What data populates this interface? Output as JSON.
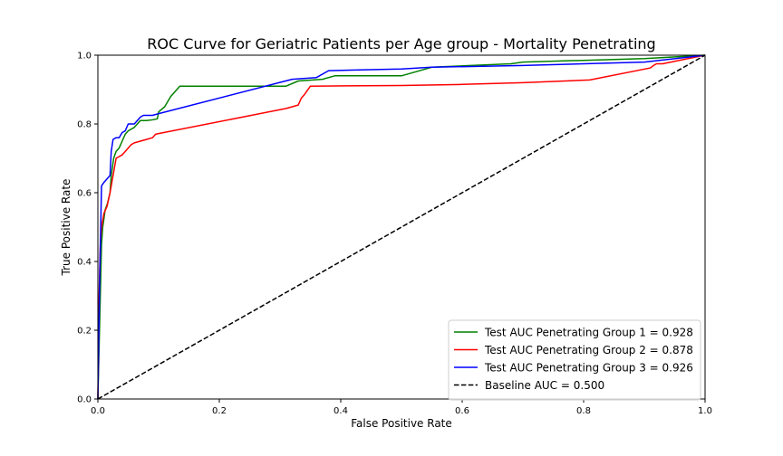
{
  "chart_data": {
    "type": "line",
    "title": "ROC Curve for Geriatric Patients per Age group - Mortality Penetrating",
    "xlabel": "False Positive Rate",
    "ylabel": "True Positive Rate",
    "xlim": [
      0,
      1
    ],
    "ylim": [
      0,
      1
    ],
    "xticks": [
      "0.0",
      "0.2",
      "0.4",
      "0.6",
      "0.8",
      "1.0"
    ],
    "yticks": [
      "0.0",
      "0.2",
      "0.4",
      "0.6",
      "0.8",
      "1.0"
    ],
    "grid": false,
    "legend_position": "lower-right",
    "series": [
      {
        "name": "Test AUC Penetrating Group 1 = 0.928",
        "color": "#008000",
        "dash": "solid",
        "x": [
          0,
          0.004,
          0.006,
          0.008,
          0.012,
          0.016,
          0.02,
          0.022,
          0.026,
          0.03,
          0.035,
          0.04,
          0.045,
          0.05,
          0.06,
          0.065,
          0.07,
          0.08,
          0.09,
          0.098,
          0.1,
          0.11,
          0.12,
          0.135,
          0.31,
          0.33,
          0.37,
          0.39,
          0.5,
          0.55,
          0.68,
          0.7,
          0.8,
          0.9,
          1.0
        ],
        "y": [
          0,
          0.3,
          0.45,
          0.5,
          0.55,
          0.57,
          0.6,
          0.65,
          0.7,
          0.72,
          0.73,
          0.75,
          0.77,
          0.78,
          0.79,
          0.8,
          0.81,
          0.81,
          0.812,
          0.815,
          0.835,
          0.85,
          0.88,
          0.91,
          0.91,
          0.925,
          0.93,
          0.94,
          0.94,
          0.965,
          0.975,
          0.98,
          0.985,
          0.99,
          1.0
        ]
      },
      {
        "name": "Test AUC Penetrating Group 2 = 0.878",
        "color": "#ff0000",
        "dash": "solid",
        "x": [
          0,
          0.002,
          0.004,
          0.006,
          0.01,
          0.015,
          0.02,
          0.025,
          0.03,
          0.04,
          0.05,
          0.055,
          0.06,
          0.07,
          0.08,
          0.09,
          0.095,
          0.1,
          0.31,
          0.32,
          0.33,
          0.335,
          0.34,
          0.35,
          0.5,
          0.6,
          0.7,
          0.81,
          0.91,
          0.915,
          0.92,
          0.93,
          1.0
        ],
        "y": [
          0,
          0.3,
          0.45,
          0.5,
          0.54,
          0.56,
          0.6,
          0.65,
          0.7,
          0.71,
          0.73,
          0.74,
          0.745,
          0.75,
          0.755,
          0.76,
          0.77,
          0.772,
          0.845,
          0.85,
          0.855,
          0.875,
          0.885,
          0.91,
          0.912,
          0.915,
          0.92,
          0.928,
          0.963,
          0.97,
          0.975,
          0.975,
          1.0
        ]
      },
      {
        "name": "Test AUC Penetrating Group 3 = 0.926",
        "color": "#0000ff",
        "dash": "solid",
        "x": [
          0,
          0.003,
          0.006,
          0.01,
          0.015,
          0.02,
          0.022,
          0.025,
          0.03,
          0.035,
          0.04,
          0.045,
          0.05,
          0.06,
          0.065,
          0.07,
          0.075,
          0.09,
          0.1,
          0.32,
          0.36,
          0.38,
          0.5,
          0.55,
          0.7,
          0.8,
          0.9,
          1.0
        ],
        "y": [
          0,
          0.35,
          0.62,
          0.63,
          0.64,
          0.65,
          0.72,
          0.755,
          0.76,
          0.76,
          0.775,
          0.78,
          0.8,
          0.8,
          0.81,
          0.82,
          0.825,
          0.825,
          0.83,
          0.93,
          0.935,
          0.955,
          0.96,
          0.965,
          0.97,
          0.975,
          0.98,
          1.0
        ]
      },
      {
        "name": "Baseline AUC = 0.500",
        "color": "#000000",
        "dash": "dashed",
        "x": [
          0,
          1
        ],
        "y": [
          0,
          1
        ]
      }
    ]
  }
}
